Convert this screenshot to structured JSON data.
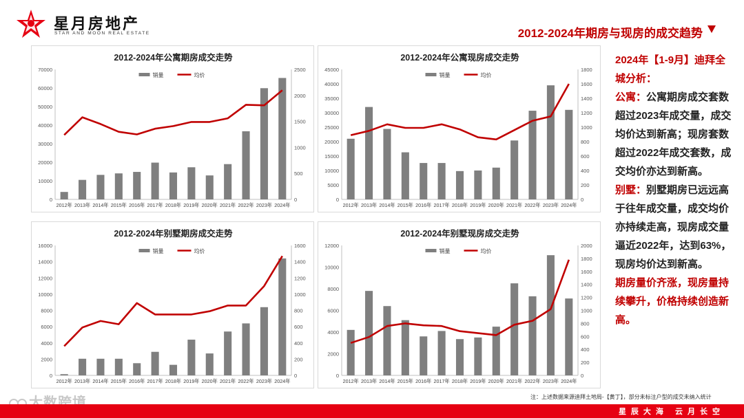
{
  "brand": {
    "name": "星月房地产",
    "subtitle": "STAR AND MOON REAL ESTATE",
    "red": "#e60012"
  },
  "page_title": "2012-2024年期房与现房的成交趋势",
  "sidebar": {
    "heading": "2024年【1-9月】迪拜全城分析：",
    "apartment_label": "公寓：",
    "apartment_text": "公寓期房成交套数超过2023年成交量，成交均价达到新高；现房套数超过2022年成交套数，成交均价亦达到新高。",
    "villa_label": "别墅：",
    "villa_text": "别墅期房已远远高于往年成交量，成交均价亦持续走高，现房成交量逼近2022年，达到63%，现房均价达到新高。",
    "conclusion": "期房量价齐涨，现房量持续攀升，价格持续创造新高。"
  },
  "footer": {
    "slogan": "星辰大海 云月长空",
    "note": "注：上述数据来源迪拜土地局-【黄丁】，部分未标注户型的成交未纳入统计",
    "watermark": "大数跨境"
  },
  "chart_data": [
    {
      "type": "bar",
      "title": "2012-2024年公寓期房成交走势",
      "categories": [
        "2012年",
        "2013年",
        "2014年",
        "2015年",
        "2016年",
        "2017年",
        "2018年",
        "2019年",
        "2020年",
        "2021年",
        "2022年",
        "2023年",
        "2024年"
      ],
      "series": [
        {
          "name": "销量",
          "type": "bar",
          "axis": "left",
          "color": "#7f7f7f",
          "values": [
            4000,
            10500,
            13200,
            14000,
            14800,
            19800,
            14500,
            17300,
            12900,
            19000,
            36700,
            59900,
            65400
          ]
        },
        {
          "name": "均价",
          "type": "line",
          "axis": "right",
          "color": "#c00000",
          "values": [
            1240,
            1580,
            1450,
            1300,
            1250,
            1360,
            1410,
            1490,
            1490,
            1560,
            1820,
            1810,
            2100
          ]
        }
      ],
      "ylim": [
        0,
        70000
      ],
      "yticks": [
        0,
        10000,
        20000,
        30000,
        40000,
        50000,
        60000,
        70000
      ],
      "y2lim": [
        0,
        2500
      ],
      "y2ticks": [
        0,
        500,
        1000,
        1500,
        2000,
        2500
      ],
      "legend": "top"
    },
    {
      "type": "bar",
      "title": "2012-2024年公寓现房成交走势",
      "categories": [
        "2012年",
        "2013年",
        "2014年",
        "2015年",
        "2016年",
        "2017年",
        "2018年",
        "2019年",
        "2020年",
        "2021年",
        "2022年",
        "2023年",
        "2024年"
      ],
      "series": [
        {
          "name": "销量",
          "type": "bar",
          "axis": "left",
          "color": "#7f7f7f",
          "values": [
            21000,
            32000,
            24400,
            16300,
            12600,
            12600,
            9800,
            10000,
            11000,
            20400,
            30700,
            39500,
            31000
          ]
        },
        {
          "name": "均价",
          "type": "line",
          "axis": "right",
          "color": "#c00000",
          "values": [
            890,
            950,
            1040,
            990,
            990,
            1040,
            970,
            860,
            830,
            960,
            1090,
            1150,
            1600
          ]
        }
      ],
      "ylim": [
        0,
        45000
      ],
      "yticks": [
        0,
        5000,
        10000,
        15000,
        20000,
        25000,
        30000,
        35000,
        40000,
        45000
      ],
      "y2lim": [
        0,
        1800
      ],
      "y2ticks": [
        0,
        200,
        400,
        600,
        800,
        1000,
        1200,
        1400,
        1600,
        1800
      ],
      "legend": "top"
    },
    {
      "type": "bar",
      "title": "2012-2024年别墅期房成交走势",
      "categories": [
        "2012年",
        "2013年",
        "2014年",
        "2015年",
        "2016年",
        "2017年",
        "2018年",
        "2019年",
        "2020年",
        "2021年",
        "2022年",
        "2023年",
        "2024年"
      ],
      "series": [
        {
          "name": "销量",
          "type": "bar",
          "axis": "left",
          "color": "#7f7f7f",
          "values": [
            150,
            2050,
            2050,
            2050,
            1500,
            2900,
            1300,
            4400,
            2700,
            5400,
            6400,
            8400,
            14400
          ]
        },
        {
          "name": "均价",
          "type": "line",
          "axis": "right",
          "color": "#c00000",
          "values": [
            360,
            590,
            670,
            630,
            890,
            750,
            750,
            750,
            790,
            860,
            860,
            1100,
            1470
          ]
        }
      ],
      "ylim": [
        0,
        16000
      ],
      "yticks": [
        0,
        2000,
        4000,
        6000,
        8000,
        10000,
        12000,
        14000,
        16000
      ],
      "y2lim": [
        0,
        1600
      ],
      "y2ticks": [
        0,
        200,
        400,
        600,
        800,
        1000,
        1200,
        1400,
        1600
      ],
      "legend": "top"
    },
    {
      "type": "bar",
      "title": "2012-2024年别墅现房成交走势",
      "categories": [
        "2012年",
        "2013年",
        "2014年",
        "2015年",
        "2016年",
        "2017年",
        "2018年",
        "2019年",
        "2020年",
        "2021年",
        "2022年",
        "2023年",
        "2024年"
      ],
      "series": [
        {
          "name": "销量",
          "type": "bar",
          "axis": "left",
          "color": "#7f7f7f",
          "values": [
            4200,
            7800,
            6400,
            5100,
            3600,
            4100,
            3350,
            3500,
            4500,
            8500,
            7300,
            11100,
            7100
          ]
        },
        {
          "name": "均价",
          "type": "line",
          "axis": "right",
          "color": "#c00000",
          "values": [
            500,
            590,
            760,
            800,
            770,
            760,
            680,
            650,
            620,
            780,
            840,
            1020,
            1780
          ]
        }
      ],
      "ylim": [
        0,
        12000
      ],
      "yticks": [
        0,
        2000,
        4000,
        6000,
        8000,
        10000,
        12000
      ],
      "y2lim": [
        0,
        2000
      ],
      "y2ticks": [
        0,
        200,
        400,
        600,
        800,
        1000,
        1200,
        1400,
        1600,
        1800,
        2000
      ],
      "legend": "top"
    }
  ]
}
